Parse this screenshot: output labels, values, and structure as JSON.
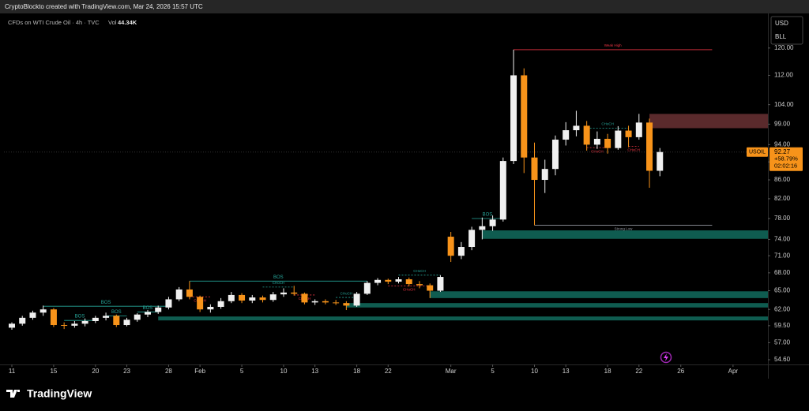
{
  "header": {
    "credit": "CryptoBlockto created with TradingView.com, Mar 24, 2026 15:57 UTC",
    "brand": "TradingView"
  },
  "chart_data": {
    "type": "candlestick",
    "legend": {
      "symbol_name": "CFDs on WTI Crude Oil · 4h · TVC",
      "volume_label": "Vol",
      "volume": "44.34K"
    },
    "currency": "USD",
    "unit": "BLL",
    "log_scale": true,
    "grid": false,
    "up_color": "#f0f0f0",
    "down_color": "#f7931a",
    "x": [
      "Jan 11",
      "Jan 12",
      "Jan 13",
      "Jan 14",
      "Jan 15",
      "Jan 16",
      "Jan 18",
      "Jan 19",
      "Jan 20",
      "Jan 21",
      "Jan 22",
      "Jan 23",
      "Jan 25",
      "Jan 26",
      "Jan 27",
      "Jan 28",
      "Jan 29",
      "Jan 30",
      "Feb 1",
      "Feb 2",
      "Feb 3",
      "Feb 4",
      "Feb 5",
      "Feb 6",
      "Feb 8",
      "Feb 9",
      "Feb 10",
      "Feb 11",
      "Feb 12",
      "Feb 13",
      "Feb 15",
      "Feb 16",
      "Feb 17",
      "Feb 18",
      "Feb 19",
      "Feb 20",
      "Feb 22",
      "Feb 23",
      "Feb 24",
      "Feb 25",
      "Feb 26",
      "Feb 27",
      "Mar 1",
      "Mar 2",
      "Mar 3",
      "Mar 4",
      "Mar 5",
      "Mar 6",
      "Mar 8",
      "Mar 9",
      "Mar 10",
      "Mar 11",
      "Mar 12",
      "Mar 13",
      "Mar 15",
      "Mar 16",
      "Mar 17",
      "Mar 18",
      "Mar 19",
      "Mar 20",
      "Mar 22",
      "Mar 23",
      "Mar 24",
      "Mar 25",
      "Mar 26",
      "Mar 27",
      "Mar 29",
      "Mar 30",
      "Mar 31",
      "Apr 1",
      "Apr 2",
      "Apr 3"
    ],
    "open": [
      59.2,
      59.8,
      60.7,
      61.5,
      62.0,
      59.6,
      59.5,
      59.8,
      60.2,
      60.7,
      61.0,
      59.6,
      60.4,
      61.2,
      61.6,
      62.3,
      63.6,
      65.2,
      64.0,
      62.0,
      62.4,
      63.3,
      64.3,
      63.4,
      63.9,
      63.5,
      64.4,
      64.7,
      64.5,
      63.1,
      63.3,
      63.1,
      63.0,
      62.6,
      64.5,
      66.3,
      66.8,
      66.5,
      66.9,
      66.1,
      65.9,
      65.0,
      74.5,
      71.0,
      72.6,
      75.8,
      76.5,
      77.8,
      90.2,
      112.0,
      91.0,
      86.0,
      88.4,
      95.2,
      97.5,
      98.6,
      94.0,
      95.4,
      93.2,
      97.4,
      95.8,
      99.4,
      88.0,
      null,
      null,
      null,
      null,
      null,
      null,
      null,
      null,
      null
    ],
    "high": [
      60.0,
      61.0,
      61.8,
      62.6,
      62.2,
      60.0,
      60.2,
      60.6,
      61.0,
      61.5,
      61.2,
      60.7,
      61.4,
      61.9,
      62.6,
      64.0,
      65.6,
      66.6,
      64.2,
      62.8,
      63.8,
      64.8,
      64.6,
      64.3,
      64.2,
      64.8,
      65.4,
      65.8,
      64.7,
      63.6,
      63.6,
      63.5,
      63.3,
      64.8,
      66.6,
      67.1,
      67.0,
      67.3,
      67.2,
      66.6,
      66.2,
      67.6,
      75.4,
      73.5,
      76.4,
      78.2,
      78.6,
      91.0,
      119.5,
      114.0,
      94.5,
      90.5,
      96.2,
      99.5,
      102.4,
      99.8,
      97.2,
      96.6,
      98.5,
      98.6,
      101.6,
      100.4,
      93.2,
      null,
      null,
      null,
      null,
      null,
      null,
      null,
      null,
      null
    ],
    "low": [
      58.9,
      59.5,
      60.4,
      61.0,
      59.3,
      59.0,
      59.2,
      59.4,
      59.9,
      60.3,
      59.3,
      59.4,
      60.1,
      60.8,
      61.3,
      62.0,
      63.3,
      63.6,
      61.6,
      61.5,
      62.1,
      63.0,
      63.0,
      63.0,
      63.1,
      63.2,
      64.0,
      64.2,
      62.8,
      62.7,
      62.8,
      62.7,
      61.9,
      62.4,
      64.3,
      65.9,
      66.1,
      66.2,
      65.7,
      65.4,
      63.8,
      64.8,
      69.9,
      70.4,
      72.0,
      74.0,
      75.6,
      77.4,
      89.5,
      87.5,
      76.7,
      83.2,
      87.0,
      93.8,
      96.0,
      92.6,
      93.0,
      91.9,
      92.8,
      93.4,
      95.2,
      84.3,
      86.8,
      null,
      null,
      null,
      null,
      null,
      null,
      null,
      null,
      null
    ],
    "close": [
      59.8,
      60.7,
      61.5,
      62.0,
      59.6,
      59.5,
      59.8,
      60.2,
      60.7,
      61.0,
      59.6,
      60.4,
      61.2,
      61.6,
      62.3,
      63.6,
      65.2,
      64.0,
      62.0,
      62.4,
      63.3,
      64.3,
      63.4,
      63.9,
      63.5,
      64.4,
      64.7,
      64.5,
      63.1,
      63.3,
      63.1,
      63.0,
      62.6,
      64.5,
      66.3,
      66.8,
      66.5,
      66.9,
      66.1,
      65.9,
      65.0,
      67.3,
      71.0,
      72.6,
      75.8,
      76.5,
      77.8,
      90.2,
      112.0,
      91.0,
      86.0,
      88.4,
      95.2,
      97.5,
      98.6,
      94.0,
      95.4,
      93.2,
      97.4,
      95.8,
      99.4,
      88.0,
      92.27,
      null,
      null,
      null,
      null,
      null,
      null,
      null,
      null,
      null
    ],
    "ylim": [
      53.95,
      130.7
    ],
    "yticks": [
      {
        "value": 120,
        "label": "120.00"
      },
      {
        "value": 112,
        "label": "112.00"
      },
      {
        "value": 104,
        "label": "104.00"
      },
      {
        "value": 99,
        "label": "99.00"
      },
      {
        "value": 94,
        "label": "94.00"
      },
      {
        "value": 90,
        "label": "90.00"
      },
      {
        "value": 86,
        "label": "86.00"
      },
      {
        "value": 82,
        "label": "82.00"
      },
      {
        "value": 78,
        "label": "78.00"
      },
      {
        "value": 74,
        "label": "74.00"
      },
      {
        "value": 71,
        "label": "71.00"
      },
      {
        "value": 68,
        "label": "68.00"
      },
      {
        "value": 65,
        "label": "65.00"
      },
      {
        "value": 62,
        "label": "62.00"
      },
      {
        "value": 59.5,
        "label": "59.50"
      },
      {
        "value": 57,
        "label": "57.00"
      },
      {
        "value": 54.6,
        "label": "54.60"
      }
    ],
    "xticks": [
      {
        "value": "Jan 11",
        "label": "11"
      },
      {
        "value": "Jan 15",
        "label": "15"
      },
      {
        "value": "Jan 20",
        "label": "20"
      },
      {
        "value": "Jan 23",
        "label": "23"
      },
      {
        "value": "Jan 28",
        "label": "28"
      },
      {
        "value": "Feb 1",
        "label": "Feb"
      },
      {
        "value": "Feb 5",
        "label": "5"
      },
      {
        "value": "Feb 10",
        "label": "10"
      },
      {
        "value": "Feb 13",
        "label": "13"
      },
      {
        "value": "Feb 18",
        "label": "18"
      },
      {
        "value": "Feb 22",
        "label": "22"
      },
      {
        "value": "Mar 1",
        "label": "Mar"
      },
      {
        "value": "Mar 5",
        "label": "5"
      },
      {
        "value": "Mar 10",
        "label": "10"
      },
      {
        "value": "Mar 13",
        "label": "13"
      },
      {
        "value": "Mar 18",
        "label": "18"
      },
      {
        "value": "Mar 22",
        "label": "22"
      },
      {
        "value": "Mar 26",
        "label": "26"
      },
      {
        "value": "Apr 1",
        "label": "Apr"
      }
    ],
    "zones": [
      {
        "start": "Jan 27",
        "low": 60.3,
        "high": 60.9,
        "color": "#0f5c50"
      },
      {
        "start": "Feb 17",
        "low": 62.3,
        "high": 63.0,
        "color": "#0f5c50"
      },
      {
        "start": "Feb 26",
        "low": 63.8,
        "high": 64.9,
        "color": "#0f5c50"
      },
      {
        "start": "Mar 4",
        "low": 74.1,
        "high": 75.7,
        "color": "#0f5c50"
      },
      {
        "start": "Mar 23",
        "low": 98.0,
        "high": 101.6,
        "color": "#5a2a2c"
      }
    ],
    "levels": [
      {
        "label": "BOS",
        "start": "Jan 14",
        "end": "Jan 28",
        "value": 62.5,
        "color": "#26a69a",
        "label_side": "above"
      },
      {
        "label": "BOS",
        "start": "Jan 16",
        "end": "Jan 20",
        "value": 60.3,
        "color": "#26a69a",
        "label_side": "above"
      },
      {
        "label": "BOS",
        "start": "Jan 21",
        "end": "Jan 23",
        "value": 61.0,
        "color": "#26a69a",
        "label_side": "above"
      },
      {
        "label": "BOS",
        "start": "Jan 25",
        "end": "Jan 27",
        "value": 61.6,
        "color": "#26a69a",
        "label_side": "above"
      },
      {
        "label": "BOS",
        "start": "Jan 30",
        "end": "Feb 19",
        "value": 66.6,
        "color": "#26a69a",
        "label_side": "above"
      },
      {
        "label": "BOS",
        "start": "Mar 3",
        "end": "Mar 6",
        "value": 78.0,
        "color": "#26a69a",
        "label_side": "above"
      },
      {
        "label": "Weak High",
        "start": "Mar 8",
        "end": "Mar 30",
        "value": 119.5,
        "color": "#f23645",
        "label_side": "above"
      },
      {
        "label": "Strong Low",
        "start": "Mar 10",
        "end": "Mar 30",
        "value": 76.7,
        "color": "#9598a1",
        "label_side": "below"
      },
      {
        "label": "CHoCH",
        "start": "Feb 8",
        "end": "Feb 11",
        "value": 65.6,
        "color": "#26a69a",
        "label_side": "above"
      },
      {
        "label": "CHoCH",
        "start": "Jan 30",
        "end": "Feb 2",
        "value": 64.0,
        "color": "#f23645",
        "label_side": "below"
      },
      {
        "label": "CHoCH",
        "start": "Feb 11",
        "end": "Feb 13",
        "value": 64.3,
        "color": "#f23645",
        "label_side": "below"
      },
      {
        "label": "CHoCH",
        "start": "Feb 16",
        "end": "Feb 18",
        "value": 63.9,
        "color": "#26a69a",
        "label_side": "above"
      },
      {
        "label": "CHoCH",
        "start": "Feb 22",
        "end": "Feb 26",
        "value": 65.8,
        "color": "#f23645",
        "label_side": "below"
      },
      {
        "label": "CHoCH",
        "start": "Feb 23",
        "end": "Feb 27",
        "value": 67.6,
        "color": "#26a69a",
        "label_side": "above"
      },
      {
        "label": "CHoCH",
        "start": "Mar 16",
        "end": "Mar 20",
        "value": 98.0,
        "color": "#26a69a",
        "label_side": "above"
      },
      {
        "label": "CHoCH",
        "start": "Mar 16",
        "end": "Mar 18",
        "value": 93.3,
        "color": "#f23645",
        "label_side": "below"
      },
      {
        "label": "CHoCH",
        "start": "Mar 20",
        "end": "Mar 22",
        "value": 93.6,
        "color": "#f23645",
        "label_side": "below"
      }
    ],
    "last_price": {
      "symbol": "USOIL",
      "value": 92.27,
      "change": "+58.79%",
      "countdown": "02:02:16",
      "color": "#f7931a"
    }
  }
}
